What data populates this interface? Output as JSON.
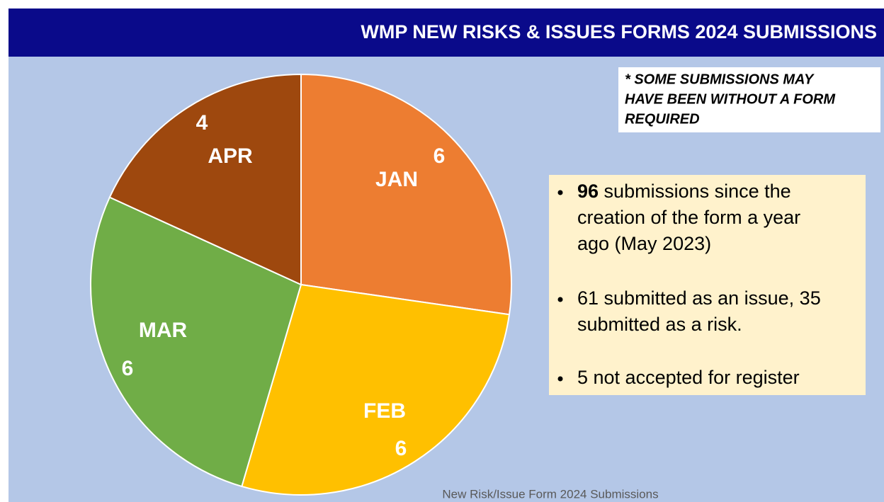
{
  "header": {
    "title": "WMP NEW RISKS & ISSUES FORMS 2024 SUBMISSIONS"
  },
  "note": {
    "lines": [
      "* SOME SUBMISSIONS MAY",
      "HAVE BEEN WITHOUT A FORM",
      "REQUIRED"
    ]
  },
  "bullets": [
    {
      "bold": "96",
      "lines": [
        " submissions since the",
        "creation of the form a year",
        "ago (May 2023)"
      ]
    },
    {
      "lines": [
        "61 submitted as an issue, 35",
        "submitted as a risk."
      ]
    },
    {
      "lines": [
        "5 not accepted for register"
      ]
    }
  ],
  "chart_data": {
    "type": "pie",
    "title": "New Risk/Issue Form 2024 Submissions",
    "categories": [
      "JAN",
      "FEB",
      "MAR",
      "APR"
    ],
    "values": [
      6,
      6,
      6,
      4
    ],
    "colors": [
      "#ed7d31",
      "#ffc000",
      "#70ad47",
      "#9e480e"
    ]
  }
}
